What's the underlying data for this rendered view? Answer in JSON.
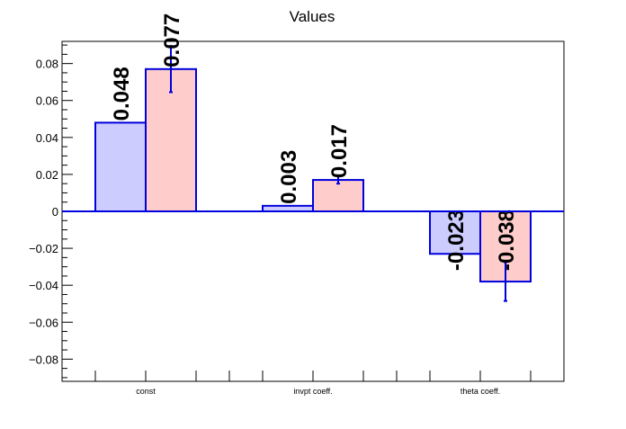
{
  "chart_data": {
    "type": "bar",
    "title": "Values",
    "xlabel": "",
    "ylabel": "",
    "ylim": [
      -0.092,
      0.092
    ],
    "yticks": [
      {
        "value": -0.08,
        "label": "−0.08"
      },
      {
        "value": -0.06,
        "label": "−0.06"
      },
      {
        "value": -0.04,
        "label": "−0.04"
      },
      {
        "value": -0.02,
        "label": "−0.02"
      },
      {
        "value": 0,
        "label": "0"
      },
      {
        "value": 0.02,
        "label": "0.02"
      },
      {
        "value": 0.04,
        "label": "0.04"
      },
      {
        "value": 0.06,
        "label": "0.06"
      },
      {
        "value": 0.08,
        "label": "0.08"
      }
    ],
    "grid": false,
    "categories": [
      "const",
      "invpt coeff.",
      "theta coeff."
    ],
    "series": [
      {
        "color": "#ccccff",
        "values": [
          0.048,
          0.003,
          -0.023
        ],
        "labels": [
          "0.048",
          "0.003",
          "-0.023"
        ],
        "errors": [
          0,
          0,
          0
        ]
      },
      {
        "color": "#ffcccc",
        "values": [
          0.077,
          0.017,
          -0.038
        ],
        "labels": [
          "0.077",
          "0.017",
          "-0.038"
        ],
        "errors": [
          0.0125,
          0.002,
          0.0105
        ]
      }
    ],
    "edge_color": "#0000dd"
  }
}
